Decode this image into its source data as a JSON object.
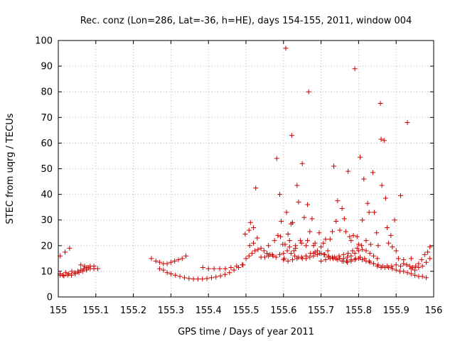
{
  "chart_data": {
    "type": "scatter",
    "title": "Rec. conz (Lon=286, Lat=-36, h=HE), days 154-155, 2011, window 004",
    "xlabel": "GPS time / Days of year 2011",
    "ylabel": "STEC from uqrg / TECUs",
    "xlim": [
      155,
      156
    ],
    "ylim": [
      0,
      100
    ],
    "x_ticks": [
      155,
      155.1,
      155.2,
      155.3,
      155.4,
      155.5,
      155.6,
      155.7,
      155.8,
      155.9,
      156
    ],
    "x_tick_labels": [
      "155",
      "155.1",
      "155.2",
      "155.3",
      "155.4",
      "155.5",
      "155.6",
      "155.7",
      "155.8",
      "155.9",
      "156"
    ],
    "y_ticks": [
      0,
      10,
      20,
      30,
      40,
      50,
      60,
      70,
      80,
      90,
      100
    ],
    "y_tick_labels": [
      "0",
      "10",
      "20",
      "30",
      "40",
      "50",
      "60",
      "70",
      "80",
      "90",
      "100"
    ],
    "grid": true,
    "marker": "+",
    "marker_color": "#cc0000",
    "series": [
      {
        "points": [
          [
            155.005,
            16
          ],
          [
            155.018,
            17.5
          ],
          [
            155.03,
            19
          ],
          [
            155.005,
            9
          ],
          [
            155.012,
            8.5
          ],
          [
            155.02,
            9.5
          ],
          [
            155.028,
            9
          ],
          [
            155.036,
            10
          ],
          [
            155.044,
            9.5
          ],
          [
            155.052,
            10
          ],
          [
            155.06,
            10.5
          ],
          [
            155.068,
            11
          ],
          [
            155.076,
            11.5
          ],
          [
            155.085,
            12
          ],
          [
            155.095,
            12
          ],
          [
            155.105,
            11
          ],
          [
            155.005,
            8.5
          ],
          [
            155.015,
            8.2
          ],
          [
            155.025,
            8.5
          ],
          [
            155.035,
            8.5
          ],
          [
            155.045,
            9
          ],
          [
            155.055,
            9.5
          ],
          [
            155.065,
            10
          ],
          [
            155.075,
            10.5
          ],
          [
            155.085,
            11
          ],
          [
            155.095,
            11
          ],
          [
            155.06,
            12.5
          ],
          [
            155.07,
            12
          ],
          [
            155.08,
            11.5
          ],
          [
            155.248,
            15
          ],
          [
            155.26,
            14
          ],
          [
            155.27,
            13.5
          ],
          [
            155.28,
            13
          ],
          [
            155.29,
            13
          ],
          [
            155.3,
            13.5
          ],
          [
            155.31,
            14
          ],
          [
            155.32,
            14.5
          ],
          [
            155.33,
            15
          ],
          [
            155.34,
            16
          ],
          [
            155.27,
            11
          ],
          [
            155.28,
            10.5
          ],
          [
            155.29,
            9.5
          ],
          [
            155.3,
            9
          ],
          [
            155.312,
            8.5
          ],
          [
            155.324,
            8
          ],
          [
            155.336,
            7.5
          ],
          [
            155.348,
            7.2
          ],
          [
            155.36,
            7
          ],
          [
            155.372,
            7
          ],
          [
            155.384,
            7
          ],
          [
            155.396,
            7.2
          ],
          [
            155.408,
            7.5
          ],
          [
            155.42,
            7.8
          ],
          [
            155.432,
            8.2
          ],
          [
            155.444,
            8.8
          ],
          [
            155.456,
            9.5
          ],
          [
            155.468,
            10.5
          ],
          [
            155.48,
            11.5
          ],
          [
            155.492,
            12.5
          ],
          [
            155.385,
            11.5
          ],
          [
            155.4,
            11
          ],
          [
            155.415,
            11
          ],
          [
            155.43,
            11
          ],
          [
            155.445,
            11
          ],
          [
            155.46,
            11.5
          ],
          [
            155.475,
            12
          ],
          [
            155.49,
            12.5
          ],
          [
            155.498,
            24.5
          ],
          [
            155.508,
            26
          ],
          [
            155.512,
            29
          ],
          [
            155.52,
            27
          ],
          [
            155.526,
            42.5
          ],
          [
            155.5,
            15
          ],
          [
            155.508,
            16
          ],
          [
            155.516,
            17
          ],
          [
            155.524,
            18
          ],
          [
            155.532,
            18.5
          ],
          [
            155.54,
            19
          ],
          [
            155.548,
            18
          ],
          [
            155.556,
            17
          ],
          [
            155.564,
            16.5
          ],
          [
            155.572,
            16
          ],
          [
            155.58,
            15.5
          ],
          [
            155.51,
            20
          ],
          [
            155.52,
            21
          ],
          [
            155.53,
            23
          ],
          [
            155.54,
            15.5
          ],
          [
            155.55,
            15.5
          ],
          [
            155.56,
            16
          ],
          [
            155.57,
            16.5
          ],
          [
            155.585,
            24
          ],
          [
            155.582,
            54
          ],
          [
            155.59,
            40
          ],
          [
            155.594,
            29.5
          ],
          [
            155.598,
            20.5
          ],
          [
            155.602,
            15
          ],
          [
            155.606,
            97
          ],
          [
            155.608,
            33
          ],
          [
            155.612,
            24.5
          ],
          [
            155.616,
            22
          ],
          [
            155.62,
            28.5
          ],
          [
            155.622,
            63
          ],
          [
            155.624,
            29
          ],
          [
            155.628,
            18
          ],
          [
            155.632,
            19
          ],
          [
            155.636,
            43.5
          ],
          [
            155.64,
            37
          ],
          [
            155.645,
            22
          ],
          [
            155.65,
            52
          ],
          [
            155.655,
            31
          ],
          [
            155.66,
            20
          ],
          [
            155.664,
            36
          ],
          [
            155.667,
            80
          ],
          [
            155.67,
            25.5
          ],
          [
            155.676,
            30.5
          ],
          [
            155.68,
            17
          ],
          [
            155.684,
            21
          ],
          [
            155.69,
            18
          ],
          [
            155.695,
            25
          ],
          [
            155.7,
            19.5
          ],
          [
            155.706,
            21
          ],
          [
            155.712,
            22.5
          ],
          [
            155.718,
            18
          ],
          [
            155.724,
            22.5
          ],
          [
            155.73,
            25.5
          ],
          [
            155.734,
            51
          ],
          [
            155.74,
            29.5
          ],
          [
            155.744,
            37.5
          ],
          [
            155.75,
            26
          ],
          [
            155.756,
            34.5
          ],
          [
            155.762,
            30.5
          ],
          [
            155.766,
            25.5
          ],
          [
            155.772,
            49
          ],
          [
            155.776,
            23.5
          ],
          [
            155.78,
            22
          ],
          [
            155.786,
            24
          ],
          [
            155.79,
            89
          ],
          [
            155.796,
            23.5
          ],
          [
            155.8,
            20.5
          ],
          [
            155.804,
            54.5
          ],
          [
            155.81,
            30
          ],
          [
            155.814,
            46
          ],
          [
            155.82,
            22
          ],
          [
            155.824,
            36.5
          ],
          [
            155.828,
            33
          ],
          [
            155.832,
            20.5
          ],
          [
            155.838,
            48.5
          ],
          [
            155.842,
            33
          ],
          [
            155.848,
            25
          ],
          [
            155.852,
            20
          ],
          [
            155.858,
            75.5
          ],
          [
            155.86,
            61.5
          ],
          [
            155.862,
            43.5
          ],
          [
            155.868,
            61
          ],
          [
            155.872,
            38.5
          ],
          [
            155.876,
            27
          ],
          [
            155.88,
            21
          ],
          [
            155.886,
            24
          ],
          [
            155.89,
            19.5
          ],
          [
            155.896,
            30
          ],
          [
            155.9,
            18
          ],
          [
            155.906,
            15
          ],
          [
            155.912,
            39.5
          ],
          [
            155.92,
            13
          ],
          [
            155.93,
            68
          ],
          [
            155.94,
            15
          ],
          [
            155.59,
            16.5
          ],
          [
            155.6,
            17
          ],
          [
            155.61,
            18
          ],
          [
            155.62,
            17
          ],
          [
            155.63,
            16
          ],
          [
            155.64,
            15.5
          ],
          [
            155.65,
            15
          ],
          [
            155.66,
            15
          ],
          [
            155.67,
            15.5
          ],
          [
            155.68,
            16
          ],
          [
            155.69,
            16.5
          ],
          [
            155.7,
            17
          ],
          [
            155.71,
            16.5
          ],
          [
            155.72,
            16
          ],
          [
            155.73,
            15.5
          ],
          [
            155.74,
            15
          ],
          [
            155.75,
            15
          ],
          [
            155.76,
            15
          ],
          [
            155.77,
            15.5
          ],
          [
            155.78,
            16
          ],
          [
            155.79,
            17
          ],
          [
            155.8,
            18
          ],
          [
            155.81,
            18.5
          ],
          [
            155.82,
            18
          ],
          [
            155.83,
            17
          ],
          [
            155.84,
            16
          ],
          [
            155.85,
            15
          ],
          [
            155.6,
            14.5
          ],
          [
            155.612,
            14
          ],
          [
            155.624,
            14.5
          ],
          [
            155.636,
            15
          ],
          [
            155.648,
            15.5
          ],
          [
            155.66,
            16
          ],
          [
            155.672,
            17
          ],
          [
            155.684,
            17.5
          ],
          [
            155.696,
            17
          ],
          [
            155.708,
            16.5
          ],
          [
            155.72,
            15.5
          ],
          [
            155.732,
            15
          ],
          [
            155.744,
            14.5
          ],
          [
            155.756,
            14
          ],
          [
            155.768,
            14
          ],
          [
            155.78,
            14.5
          ],
          [
            155.792,
            15
          ],
          [
            155.804,
            15.5
          ],
          [
            155.816,
            15
          ],
          [
            155.828,
            14
          ],
          [
            155.84,
            13
          ],
          [
            155.852,
            12.5
          ],
          [
            155.864,
            12
          ],
          [
            155.876,
            12
          ],
          [
            155.888,
            12
          ],
          [
            155.9,
            12.5
          ],
          [
            155.912,
            12
          ],
          [
            155.76,
            14
          ],
          [
            155.77,
            13.5
          ],
          [
            155.78,
            14
          ],
          [
            155.79,
            14.5
          ],
          [
            155.8,
            15
          ],
          [
            155.81,
            14.5
          ],
          [
            155.82,
            14
          ],
          [
            155.83,
            13.5
          ],
          [
            155.84,
            13
          ],
          [
            155.85,
            12
          ],
          [
            155.86,
            11.5
          ],
          [
            155.87,
            11.5
          ],
          [
            155.88,
            11.5
          ],
          [
            155.89,
            11
          ],
          [
            155.9,
            10.5
          ],
          [
            155.91,
            10
          ],
          [
            155.92,
            10
          ],
          [
            155.93,
            9.5
          ],
          [
            155.94,
            9
          ],
          [
            155.95,
            8.5
          ],
          [
            155.96,
            8
          ],
          [
            155.97,
            8
          ],
          [
            155.98,
            7.5
          ],
          [
            155.92,
            14.5
          ],
          [
            155.928,
            12.5
          ],
          [
            155.936,
            12
          ],
          [
            155.944,
            11.5
          ],
          [
            155.952,
            12
          ],
          [
            155.96,
            13
          ],
          [
            155.968,
            14.5
          ],
          [
            155.976,
            16.5
          ],
          [
            155.984,
            17.5
          ],
          [
            155.99,
            19.5
          ],
          [
            155.94,
            11
          ],
          [
            155.95,
            10.5
          ],
          [
            155.96,
            11.5
          ],
          [
            155.97,
            12
          ],
          [
            155.98,
            13.5
          ],
          [
            155.99,
            15
          ],
          [
            155.7,
            14
          ],
          [
            155.712,
            14.5
          ],
          [
            155.724,
            15
          ],
          [
            155.736,
            15.5
          ],
          [
            155.748,
            16
          ],
          [
            155.76,
            16.5
          ],
          [
            155.772,
            17
          ],
          [
            155.784,
            18
          ],
          [
            155.796,
            19
          ],
          [
            155.808,
            20
          ],
          [
            155.56,
            20
          ],
          [
            155.576,
            22
          ],
          [
            155.592,
            23.5
          ],
          [
            155.604,
            20.5
          ],
          [
            155.616,
            19.5
          ],
          [
            155.632,
            20
          ],
          [
            155.648,
            21
          ],
          [
            155.664,
            22
          ],
          [
            155.68,
            20
          ]
        ]
      }
    ]
  }
}
